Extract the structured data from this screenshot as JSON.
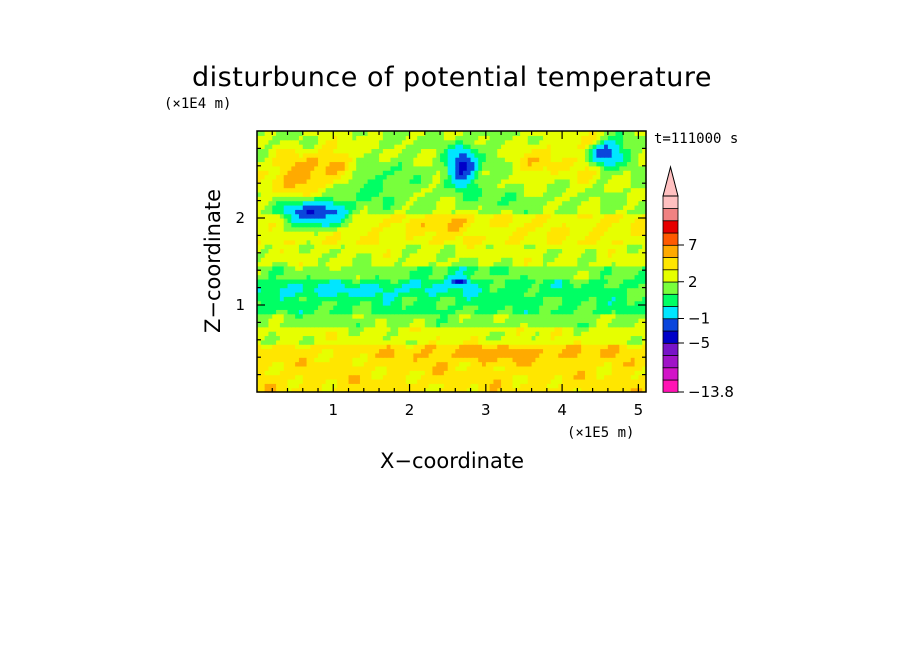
{
  "chart_data": {
    "type": "heatmap",
    "title": "disturbunce of potential temperature",
    "xlabel": "X−coordinate",
    "ylabel": "Z−coordinate",
    "x_unit": "(×1E5 m)",
    "y_unit": "(×1E4 m)",
    "time_label": "t=111000 s",
    "xlim": [
      0,
      5.1
    ],
    "ylim": [
      0,
      3.0
    ],
    "x_ticks": [
      {
        "value": 1,
        "label": "1"
      },
      {
        "value": 2,
        "label": "2"
      },
      {
        "value": 3,
        "label": "3"
      },
      {
        "value": 4,
        "label": "4"
      },
      {
        "value": 5,
        "label": "5"
      }
    ],
    "y_ticks": [
      {
        "value": 1,
        "label": "1"
      },
      {
        "value": 2,
        "label": "2"
      }
    ],
    "colorbar": {
      "levels": [
        -13.8,
        -11,
        -9,
        -7,
        -5,
        -3,
        -1,
        0,
        1,
        2,
        3,
        5,
        7,
        9,
        11
      ],
      "colors": [
        "#ff14b4",
        "#d214c8",
        "#a014c8",
        "#7814c8",
        "#0000c8",
        "#0a46dc",
        "#00e6ff",
        "#00ff64",
        "#78ff3c",
        "#e6ff00",
        "#ffe600",
        "#ffaa00",
        "#ff5a00",
        "#e60000",
        "#f08282",
        "#ffc0c0"
      ],
      "extend": "max",
      "labels": [
        {
          "level": 7,
          "text": "7"
        },
        {
          "level": 2,
          "text": "2"
        },
        {
          "level": -1,
          "text": "−1"
        },
        {
          "level": -5,
          "text": "−5"
        },
        {
          "level": -13.8,
          "text": "−13.8"
        }
      ]
    }
  }
}
